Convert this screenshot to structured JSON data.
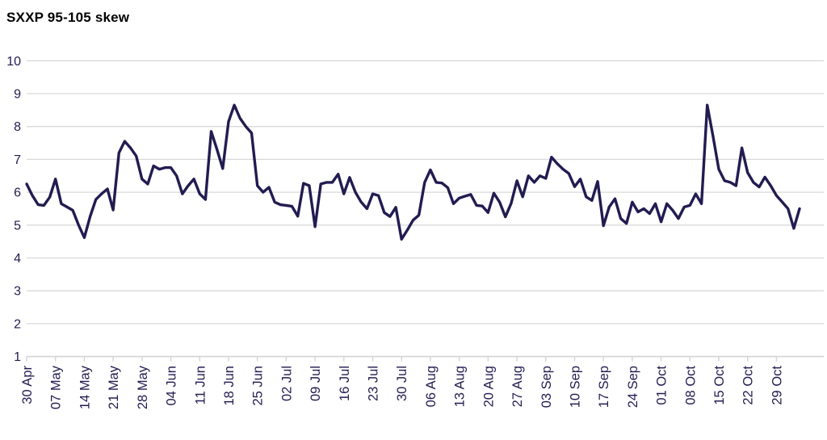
{
  "chart_data": {
    "type": "line",
    "title": "SXXP 95-105 skew",
    "legend": "none",
    "grid": "horizontal-only",
    "ylim": [
      1,
      10
    ],
    "y_ticks": [
      10,
      9,
      8,
      7,
      6,
      5,
      4,
      3,
      2,
      1
    ],
    "x_tick_labels": [
      "30 Apr",
      "07 May",
      "14 May",
      "21 May",
      "28 May",
      "04 Jun",
      "11 Jun",
      "18 Jun",
      "25 Jun",
      "02 Jul",
      "09 Jul",
      "16 Jul",
      "23 Jul",
      "30 Jul",
      "06 Aug",
      "13 Aug",
      "20 Aug",
      "27 Aug",
      "03 Sep",
      "10 Sep",
      "17 Sep",
      "24 Sep",
      "01 Oct",
      "08 Oct",
      "15 Oct",
      "22 Oct",
      "29 Oct"
    ],
    "points_per_tick": 5,
    "x_frequency": "daily (weekdays), ticks weekly on Mondays",
    "values": [
      6.25,
      5.9,
      5.62,
      5.6,
      5.85,
      6.4,
      5.65,
      5.55,
      5.45,
      5.0,
      4.62,
      5.26,
      5.78,
      5.95,
      6.1,
      5.46,
      7.2,
      7.55,
      7.35,
      7.1,
      6.4,
      6.25,
      6.8,
      6.7,
      6.75,
      6.75,
      6.5,
      5.95,
      6.2,
      6.4,
      5.95,
      5.78,
      7.85,
      7.3,
      6.72,
      8.15,
      8.65,
      8.25,
      8.0,
      7.8,
      6.2,
      6.0,
      6.15,
      5.7,
      5.62,
      5.6,
      5.57,
      5.27,
      6.27,
      6.2,
      4.95,
      6.25,
      6.3,
      6.3,
      6.55,
      5.95,
      6.45,
      6.0,
      5.7,
      5.5,
      5.95,
      5.9,
      5.38,
      5.26,
      5.54,
      4.57,
      4.85,
      5.15,
      5.3,
      6.3,
      6.68,
      6.3,
      6.28,
      6.14,
      5.65,
      5.82,
      5.88,
      5.93,
      5.6,
      5.58,
      5.38,
      5.97,
      5.7,
      5.25,
      5.66,
      6.35,
      5.86,
      6.5,
      6.3,
      6.5,
      6.42,
      7.07,
      6.87,
      6.7,
      6.57,
      6.17,
      6.4,
      5.86,
      5.75,
      6.33,
      4.98,
      5.55,
      5.8,
      5.2,
      5.05,
      5.7,
      5.4,
      5.5,
      5.35,
      5.65,
      5.1,
      5.65,
      5.45,
      5.2,
      5.55,
      5.6,
      5.95,
      5.65,
      8.65,
      7.7,
      6.7,
      6.35,
      6.3,
      6.2,
      7.35,
      6.6,
      6.3,
      6.16,
      6.46,
      6.2,
      5.9,
      5.7,
      5.5,
      4.9,
      5.5
    ],
    "colors": {
      "line": "#221c51",
      "text": "#221c51",
      "gridline": "#d9d9d9",
      "axis_line": "#d4d4d4"
    }
  }
}
